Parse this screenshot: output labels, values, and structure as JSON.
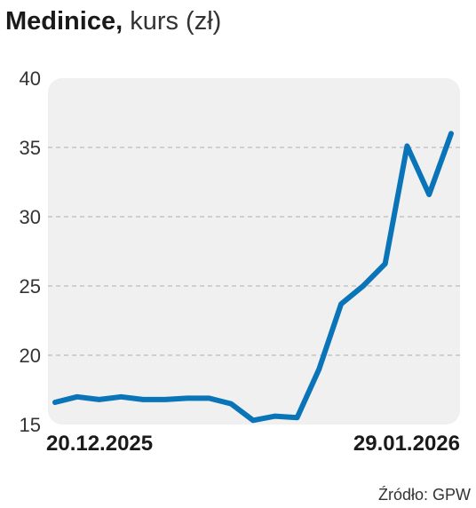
{
  "header": {
    "title_bold": "Medinice,",
    "title_rest": "kurs (zł)"
  },
  "source": "Źródło: GPW",
  "chart_data": {
    "type": "line",
    "title": "Medinice, kurs (zł)",
    "xlabel": "",
    "ylabel": "",
    "ylim": [
      15,
      40
    ],
    "yticks": [
      15,
      20,
      25,
      30,
      35,
      40
    ],
    "x_tick_labels": [
      "20.12.2025",
      "29.01.2026"
    ],
    "grid": true,
    "colors": {
      "line": "#0a74b8",
      "plot_bg": "#f0f0f0",
      "grid": "#bbbbbb"
    },
    "series": [
      {
        "values": [
          16.6,
          17.0,
          16.8,
          17.0,
          16.8,
          16.8,
          16.9,
          16.9,
          16.5,
          15.3,
          15.6,
          15.5,
          19.0,
          23.7,
          25.0,
          26.6,
          35.1,
          31.6,
          36.0
        ]
      }
    ]
  }
}
